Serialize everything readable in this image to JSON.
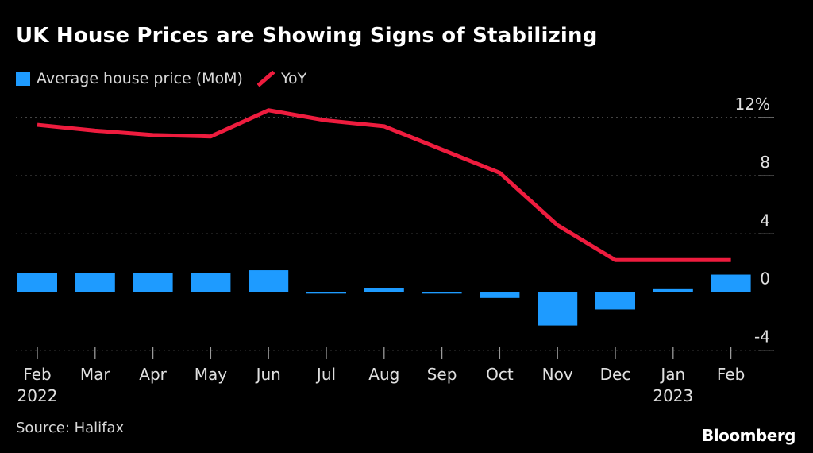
{
  "title": "UK House Prices are Showing Signs of Stabilizing",
  "legend": {
    "bar_label": "Average house price (MoM)",
    "line_label": "YoY"
  },
  "source": "Source: Halifax",
  "brand": "Bloomberg",
  "colors": {
    "bar": "#1e9bff",
    "line": "#ee1c3e",
    "background": "#000000",
    "grid": "#6e6e6e"
  },
  "chart_data": {
    "type": "bar",
    "title": "UK House Prices are Showing Signs of Stabilizing",
    "categories": [
      "Feb",
      "Mar",
      "Apr",
      "May",
      "Jun",
      "Jul",
      "Aug",
      "Sep",
      "Oct",
      "Nov",
      "Dec",
      "Jan",
      "Feb"
    ],
    "year_labels": [
      "2022",
      "",
      "",
      "",
      "",
      "",
      "",
      "",
      "",
      "",
      "",
      "2023",
      ""
    ],
    "series": [
      {
        "name": "Average house price (MoM)",
        "type": "bar",
        "values": [
          1.3,
          1.3,
          1.3,
          1.3,
          1.5,
          -0.1,
          0.3,
          -0.1,
          -0.4,
          -2.3,
          -1.2,
          0.2,
          1.2
        ]
      },
      {
        "name": "YoY",
        "type": "line",
        "values": [
          11.5,
          11.1,
          10.8,
          10.7,
          12.5,
          11.8,
          11.4,
          9.8,
          8.2,
          4.6,
          2.2,
          2.2,
          2.2
        ]
      }
    ],
    "y_ticks": [
      -4,
      0,
      4,
      8,
      12
    ],
    "y_tick_labels": [
      "-4",
      "0",
      "4",
      "8",
      "12%"
    ],
    "ylim": [
      -4,
      12
    ],
    "xlabel": "",
    "ylabel": "",
    "grid": true
  }
}
